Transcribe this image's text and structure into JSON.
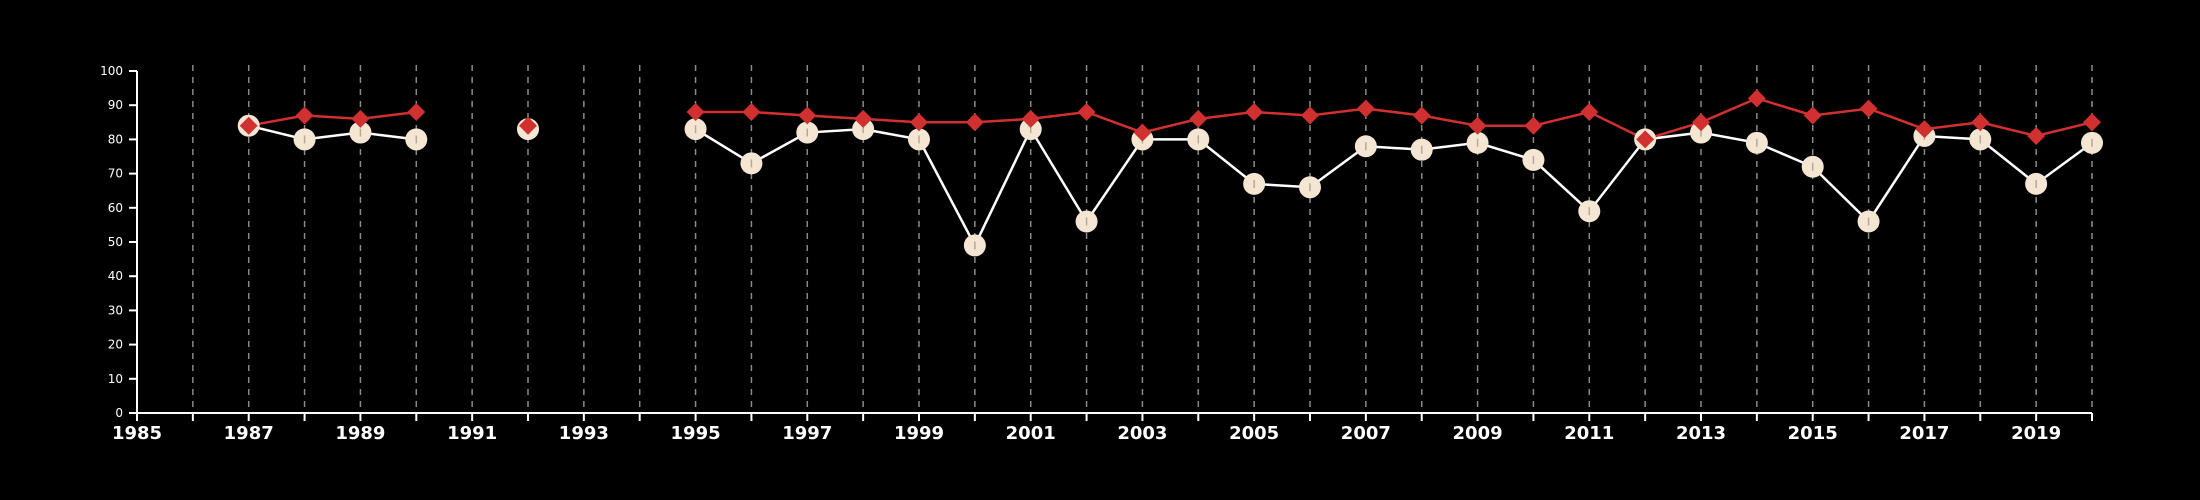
{
  "chart_data": {
    "type": "line",
    "xlim": [
      1985,
      2020
    ],
    "ylim": [
      0,
      100
    ],
    "x_ticks": [
      1985,
      1987,
      1989,
      1991,
      1993,
      1995,
      1997,
      1999,
      2001,
      2003,
      2005,
      2007,
      2009,
      2011,
      2013,
      2015,
      2017,
      2019
    ],
    "y_ticks": [
      0,
      10,
      20,
      30,
      40,
      50,
      60,
      70,
      80,
      90,
      100
    ],
    "vertical_grid": "dashed, every year",
    "colors": {
      "background": "#000000",
      "axis": "#ffffff",
      "grid": "#8a8a8a",
      "white_series_line": "#ffffff",
      "white_series_marker": "#f5e6d3",
      "red_series": "#d03030"
    },
    "series": [
      {
        "marker": "circle",
        "color": "#f5e6d3",
        "points": [
          {
            "x": 1987,
            "y": 84
          },
          {
            "x": 1988,
            "y": 80
          },
          {
            "x": 1989,
            "y": 82
          },
          {
            "x": 1990,
            "y": 80
          },
          {
            "x": 1992,
            "y": 83
          },
          {
            "x": 1995,
            "y": 83
          },
          {
            "x": 1996,
            "y": 73
          },
          {
            "x": 1997,
            "y": 82
          },
          {
            "x": 1998,
            "y": 83
          },
          {
            "x": 1999,
            "y": 80
          },
          {
            "x": 2000,
            "y": 49
          },
          {
            "x": 2001,
            "y": 83
          },
          {
            "x": 2002,
            "y": 56
          },
          {
            "x": 2003,
            "y": 80
          },
          {
            "x": 2004,
            "y": 80
          },
          {
            "x": 2005,
            "y": 67
          },
          {
            "x": 2006,
            "y": 66
          },
          {
            "x": 2007,
            "y": 78
          },
          {
            "x": 2008,
            "y": 77
          },
          {
            "x": 2009,
            "y": 79
          },
          {
            "x": 2010,
            "y": 74
          },
          {
            "x": 2011,
            "y": 59
          },
          {
            "x": 2012,
            "y": 80
          },
          {
            "x": 2013,
            "y": 82
          },
          {
            "x": 2014,
            "y": 79
          },
          {
            "x": 2015,
            "y": 72
          },
          {
            "x": 2016,
            "y": 56
          },
          {
            "x": 2017,
            "y": 81
          },
          {
            "x": 2018,
            "y": 80
          },
          {
            "x": 2019,
            "y": 67
          },
          {
            "x": 2020,
            "y": 79
          }
        ]
      },
      {
        "marker": "diamond",
        "color": "#d03030",
        "points": [
          {
            "x": 1987,
            "y": 84
          },
          {
            "x": 1988,
            "y": 87
          },
          {
            "x": 1989,
            "y": 86
          },
          {
            "x": 1990,
            "y": 88
          },
          {
            "x": 1992,
            "y": 84
          },
          {
            "x": 1995,
            "y": 88
          },
          {
            "x": 1996,
            "y": 88
          },
          {
            "x": 1997,
            "y": 87
          },
          {
            "x": 1998,
            "y": 86
          },
          {
            "x": 1999,
            "y": 85
          },
          {
            "x": 2000,
            "y": 85
          },
          {
            "x": 2001,
            "y": 86
          },
          {
            "x": 2002,
            "y": 88
          },
          {
            "x": 2003,
            "y": 82
          },
          {
            "x": 2004,
            "y": 86
          },
          {
            "x": 2005,
            "y": 88
          },
          {
            "x": 2006,
            "y": 87
          },
          {
            "x": 2007,
            "y": 89
          },
          {
            "x": 2008,
            "y": 87
          },
          {
            "x": 2009,
            "y": 84
          },
          {
            "x": 2010,
            "y": 84
          },
          {
            "x": 2011,
            "y": 88
          },
          {
            "x": 2012,
            "y": 80
          },
          {
            "x": 2013,
            "y": 85
          },
          {
            "x": 2014,
            "y": 92
          },
          {
            "x": 2015,
            "y": 87
          },
          {
            "x": 2016,
            "y": 89
          },
          {
            "x": 2017,
            "y": 83
          },
          {
            "x": 2018,
            "y": 85
          },
          {
            "x": 2019,
            "y": 81
          },
          {
            "x": 2020,
            "y": 85
          }
        ]
      }
    ]
  }
}
